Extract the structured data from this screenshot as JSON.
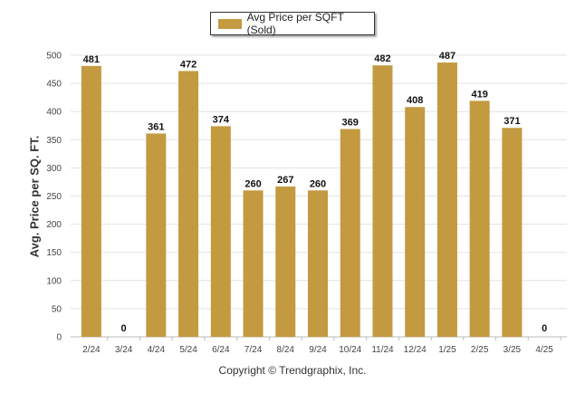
{
  "chart_data": {
    "type": "bar",
    "categories": [
      "2/24",
      "3/24",
      "4/24",
      "5/24",
      "6/24",
      "7/24",
      "8/24",
      "9/24",
      "10/24",
      "11/24",
      "12/24",
      "1/25",
      "2/25",
      "3/25",
      "4/25"
    ],
    "series": [
      {
        "name": "Avg Price per SQFT (Sold)",
        "values": [
          481,
          0,
          361,
          472,
          374,
          260,
          267,
          260,
          369,
          482,
          408,
          487,
          419,
          371,
          0
        ],
        "color": "#c39a40"
      }
    ],
    "ylabel": "Avg. Price per SQ. FT.",
    "xlabel": "",
    "ylim": [
      0,
      500
    ],
    "yticks": [
      0,
      50,
      100,
      150,
      200,
      250,
      300,
      350,
      400,
      450,
      500
    ],
    "grid": true,
    "legend_position": "top-center",
    "data_labels": true
  },
  "footer": "Copyright © Trendgraphix, Inc."
}
